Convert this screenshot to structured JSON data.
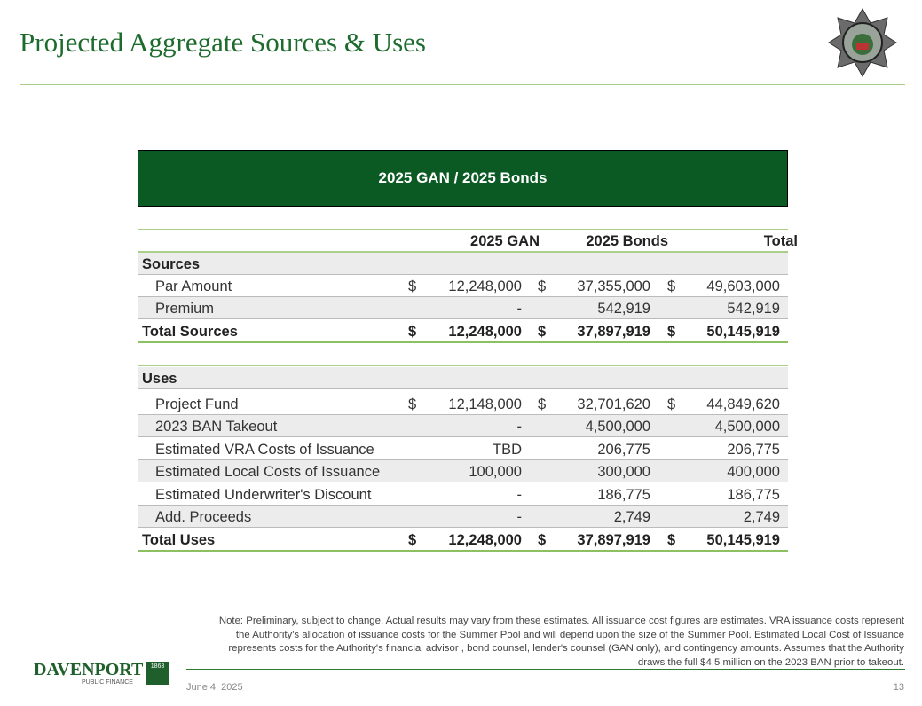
{
  "header": {
    "title": "Projected Aggregate Sources & Uses"
  },
  "table": {
    "banner": "2025 GAN / 2025 Bonds",
    "columns": [
      "2025 GAN",
      "2025 Bonds",
      "Total"
    ],
    "sections": [
      {
        "heading": "Sources",
        "rows": [
          {
            "label": "Par Amount",
            "currency": "$",
            "cells": [
              "12,248,000",
              "37,355,000",
              "49,603,000"
            ]
          },
          {
            "label": "Premium",
            "cells": [
              "-",
              "542,919",
              "542,919"
            ]
          }
        ],
        "total": {
          "label": "Total Sources",
          "currency": "$",
          "cells": [
            "12,248,000",
            "37,897,919",
            "50,145,919"
          ]
        }
      },
      {
        "heading": "Uses",
        "rows": [
          {
            "label": "Project Fund",
            "currency": "$",
            "cells": [
              "12,148,000",
              "32,701,620",
              "44,849,620"
            ]
          },
          {
            "label": "2023 BAN Takeout",
            "cells": [
              "-",
              "4,500,000",
              "4,500,000"
            ]
          },
          {
            "label": "Estimated VRA Costs of Issuance",
            "cells": [
              "TBD",
              "206,775",
              "206,775"
            ]
          },
          {
            "label": "Estimated Local Costs of Issuance",
            "cells": [
              "100,000",
              "300,000",
              "400,000"
            ]
          },
          {
            "label": "Estimated Underwriter's Discount",
            "cells": [
              "-",
              "186,775",
              "186,775"
            ]
          },
          {
            "label": "Add. Proceeds",
            "cells": [
              "-",
              "2,749",
              "2,749"
            ]
          }
        ],
        "total": {
          "label": "Total Uses",
          "currency": "$",
          "cells": [
            "12,248,000",
            "37,897,919",
            "50,145,919"
          ]
        }
      }
    ]
  },
  "note": "Note: Preliminary, subject to change. Actual results may vary from these estimates.  All issuance cost figures are estimates. VRA issuance costs represent the Authority's allocation of issuance costs for the Summer Pool and will depend upon the size of the Summer Pool. Estimated Local Cost of Issuance represents costs for the Authority's financial advisor , bond counsel, lender's counsel (GAN only), and contingency amounts. Assumes that the Authority draws the full $4.5 million on the 2023 BAN prior to takeout.",
  "footer": {
    "logo": "DAVENPORT",
    "logo_sub": "PUBLIC FINANCE",
    "logo_year": "1863",
    "date": "June 4, 2025",
    "page": "13"
  }
}
